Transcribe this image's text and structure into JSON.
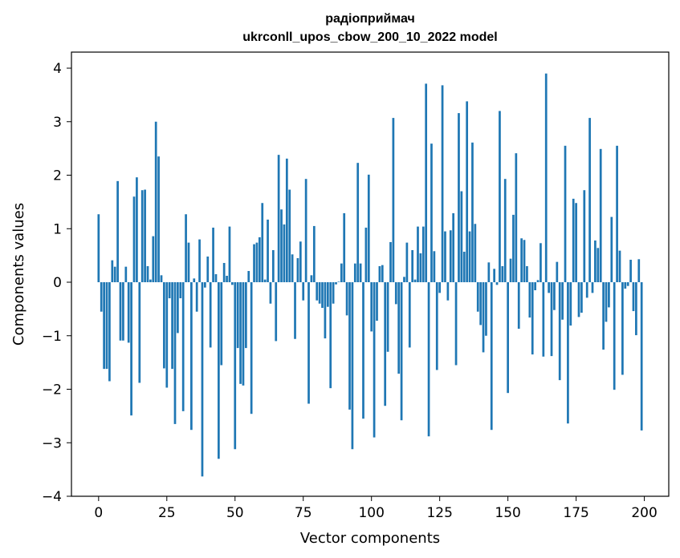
{
  "chart_data": {
    "type": "bar",
    "title": "радіоприймач",
    "subtitle": "ukrconll_upos_cbow_200_10_2022 model",
    "xlabel": "Vector components",
    "ylabel": "Components values",
    "xlim": [
      -9.95,
      208.95
    ],
    "ylim": [
      -4.0,
      4.3
    ],
    "xticks": [
      0,
      25,
      50,
      75,
      100,
      125,
      150,
      175,
      200
    ],
    "xtick_labels": [
      "0",
      "25",
      "50",
      "75",
      "100",
      "125",
      "150",
      "175",
      "200"
    ],
    "yticks": [
      -4,
      -3,
      -2,
      -1,
      0,
      1,
      2,
      3,
      4
    ],
    "ytick_labels": [
      "−4",
      "−3",
      "−2",
      "−1",
      "0",
      "1",
      "2",
      "3",
      "4"
    ],
    "grid": false,
    "bar_color": "#1f77b4",
    "x": [
      0,
      1,
      2,
      3,
      4,
      5,
      6,
      7,
      8,
      9,
      10,
      11,
      12,
      13,
      14,
      15,
      16,
      17,
      18,
      19,
      20,
      21,
      22,
      23,
      24,
      25,
      26,
      27,
      28,
      29,
      30,
      31,
      32,
      33,
      34,
      35,
      36,
      37,
      38,
      39,
      40,
      41,
      42,
      43,
      44,
      45,
      46,
      47,
      48,
      49,
      50,
      51,
      52,
      53,
      54,
      55,
      56,
      57,
      58,
      59,
      60,
      61,
      62,
      63,
      64,
      65,
      66,
      67,
      68,
      69,
      70,
      71,
      72,
      73,
      74,
      75,
      76,
      77,
      78,
      79,
      80,
      81,
      82,
      83,
      84,
      85,
      86,
      87,
      88,
      89,
      90,
      91,
      92,
      93,
      94,
      95,
      96,
      97,
      98,
      99,
      100,
      101,
      102,
      103,
      104,
      105,
      106,
      107,
      108,
      109,
      110,
      111,
      112,
      113,
      114,
      115,
      116,
      117,
      118,
      119,
      120,
      121,
      122,
      123,
      124,
      125,
      126,
      127,
      128,
      129,
      130,
      131,
      132,
      133,
      134,
      135,
      136,
      137,
      138,
      139,
      140,
      141,
      142,
      143,
      144,
      145,
      146,
      147,
      148,
      149,
      150,
      151,
      152,
      153,
      154,
      155,
      156,
      157,
      158,
      159,
      160,
      161,
      162,
      163,
      164,
      165,
      166,
      167,
      168,
      169,
      170,
      171,
      172,
      173,
      174,
      175,
      176,
      177,
      178,
      179,
      180,
      181,
      182,
      183,
      184,
      185,
      186,
      187,
      188,
      189,
      190,
      191,
      192,
      193,
      194,
      195,
      196,
      197,
      198,
      199
    ],
    "values": [
      1.27,
      -0.55,
      -1.62,
      -1.62,
      -1.85,
      0.41,
      0.29,
      1.89,
      -1.09,
      -1.09,
      0.29,
      -1.13,
      -2.49,
      1.6,
      1.96,
      -1.88,
      1.72,
      1.73,
      0.3,
      0.05,
      0.86,
      3.0,
      2.35,
      0.13,
      -1.61,
      -1.97,
      -0.3,
      -1.62,
      -2.65,
      -0.95,
      -0.3,
      -2.41,
      1.27,
      0.74,
      -2.76,
      0.07,
      -0.55,
      0.8,
      -3.63,
      -0.1,
      0.48,
      -1.22,
      1.02,
      0.15,
      -3.3,
      -1.55,
      0.36,
      0.12,
      1.04,
      -0.05,
      -3.12,
      -1.23,
      -1.9,
      -1.93,
      -1.23,
      0.21,
      -2.46,
      0.71,
      0.74,
      0.84,
      1.48,
      0.05,
      1.17,
      -0.4,
      0.6,
      -1.1,
      2.38,
      1.36,
      1.08,
      2.31,
      1.73,
      0.52,
      -1.06,
      0.45,
      0.76,
      -0.34,
      1.93,
      -2.27,
      0.13,
      1.05,
      -0.34,
      -0.4,
      -0.48,
      -1.05,
      -0.46,
      -1.98,
      -0.4,
      -0.04,
      0.01,
      0.35,
      1.29,
      -0.62,
      -2.38,
      -3.12,
      0.35,
      2.23,
      0.35,
      -2.55,
      1.02,
      2.01,
      -0.92,
      -2.9,
      -0.72,
      0.3,
      0.32,
      -2.31,
      -1.3,
      0.75,
      3.07,
      -0.41,
      -1.71,
      -2.58,
      0.1,
      0.74,
      -1.22,
      0.6,
      0.05,
      1.04,
      0.54,
      1.04,
      3.71,
      -2.88,
      2.59,
      0.58,
      -1.64,
      -0.2,
      3.68,
      0.95,
      -0.34,
      0.97,
      1.29,
      -1.55,
      3.16,
      1.7,
      0.57,
      3.38,
      0.95,
      2.61,
      1.09,
      -0.55,
      -0.8,
      -1.31,
      -1.0,
      0.37,
      -2.76,
      0.25,
      -0.05,
      3.2,
      0.3,
      1.93,
      -2.07,
      0.44,
      1.26,
      2.41,
      -0.87,
      0.82,
      0.79,
      0.3,
      -0.66,
      -1.35,
      -0.15,
      0.04,
      0.73,
      -1.39,
      3.9,
      -0.2,
      -1.38,
      -0.52,
      0.38,
      -1.83,
      -0.7,
      2.55,
      -2.64,
      -0.81,
      1.56,
      1.48,
      -0.65,
      -0.57,
      1.72,
      -0.29,
      3.07,
      -0.2,
      0.78,
      0.64,
      2.49,
      -1.26,
      -0.74,
      -0.47,
      1.22,
      -2.01,
      2.55,
      0.59,
      -1.73,
      -0.12,
      -0.07,
      0.42,
      -0.54,
      -0.99,
      0.43,
      -2.77
    ]
  }
}
